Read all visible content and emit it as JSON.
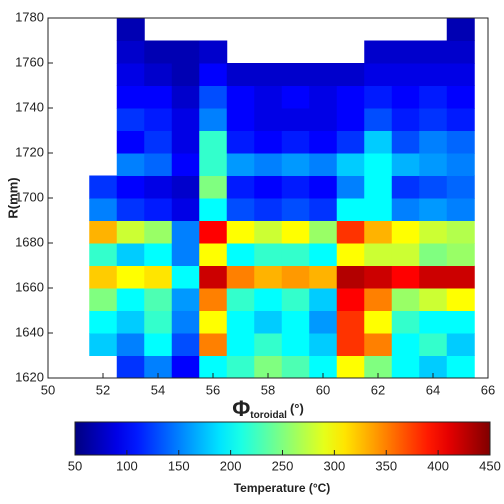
{
  "chart_data": {
    "type": "heatmap",
    "xlabel": "Φ",
    "xlabel_sub": "toroidal",
    "xlabel_unit": "(°)",
    "ylabel": "R(mm)",
    "xlim": [
      50,
      66
    ],
    "xticks": [
      50,
      52,
      54,
      56,
      58,
      60,
      62,
      64,
      66
    ],
    "ylim": [
      1620,
      1780
    ],
    "yticks": [
      1620,
      1640,
      1660,
      1680,
      1700,
      1720,
      1740,
      1760,
      1780
    ],
    "xbins": [
      51.5,
      52.5,
      53.5,
      54.5,
      55.5,
      56.5,
      57.5,
      58.5,
      59.5,
      60.5,
      61.5,
      62.5,
      63.5,
      64.5,
      65.5
    ],
    "ybins": [
      1620,
      1630,
      1640,
      1650,
      1660,
      1670,
      1680,
      1690,
      1700,
      1710,
      1720,
      1730,
      1740,
      1750,
      1760,
      1770,
      1780
    ],
    "values": [
      [
        null,
        120,
        150,
        100,
        200,
        220,
        250,
        230,
        200,
        300,
        250,
        200,
        180,
        200
      ],
      [
        180,
        150,
        200,
        130,
        350,
        200,
        220,
        200,
        180,
        380,
        350,
        200,
        220,
        180
      ],
      [
        200,
        180,
        220,
        150,
        300,
        200,
        180,
        200,
        160,
        380,
        300,
        220,
        200,
        200
      ],
      [
        250,
        200,
        230,
        160,
        350,
        220,
        200,
        220,
        180,
        400,
        350,
        260,
        280,
        300
      ],
      [
        320,
        300,
        310,
        200,
        420,
        350,
        330,
        340,
        330,
        430,
        420,
        400,
        420,
        420
      ],
      [
        220,
        180,
        200,
        150,
        300,
        200,
        220,
        220,
        200,
        300,
        280,
        280,
        250,
        260
      ],
      [
        330,
        280,
        260,
        150,
        400,
        300,
        280,
        300,
        260,
        380,
        330,
        300,
        280,
        270
      ],
      [
        150,
        120,
        110,
        90,
        200,
        130,
        120,
        130,
        120,
        200,
        200,
        150,
        160,
        150
      ],
      [
        120,
        100,
        90,
        80,
        250,
        110,
        100,
        110,
        100,
        150,
        200,
        120,
        130,
        140
      ],
      [
        null,
        150,
        140,
        100,
        220,
        160,
        150,
        160,
        150,
        180,
        200,
        170,
        160,
        150
      ],
      [
        null,
        100,
        120,
        90,
        220,
        110,
        100,
        110,
        100,
        120,
        180,
        130,
        150,
        140
      ],
      [
        null,
        120,
        110,
        90,
        150,
        100,
        90,
        90,
        90,
        100,
        130,
        110,
        120,
        110
      ],
      [
        null,
        100,
        100,
        80,
        130,
        100,
        90,
        100,
        90,
        100,
        110,
        100,
        110,
        100
      ],
      [
        null,
        90,
        80,
        70,
        100,
        80,
        80,
        80,
        80,
        80,
        90,
        90,
        90,
        90
      ],
      [
        null,
        80,
        70,
        70,
        80,
        null,
        null,
        null,
        null,
        null,
        80,
        80,
        80,
        80
      ],
      [
        null,
        70,
        null,
        null,
        null,
        null,
        null,
        null,
        null,
        null,
        null,
        null,
        null,
        70
      ]
    ],
    "colormap": "jet",
    "clim": [
      50,
      450
    ],
    "cticks": [
      50,
      100,
      150,
      200,
      250,
      300,
      350,
      400,
      450
    ],
    "clabel": "Temperature (°C)"
  }
}
